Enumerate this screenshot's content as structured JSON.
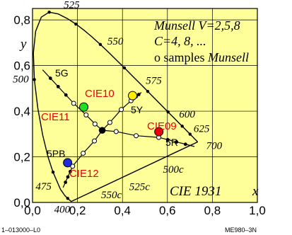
{
  "chart_data": {
    "type": "scatter",
    "title": "",
    "xlabel": "x",
    "ylabel": "y",
    "xlim": [
      0,
      1.0
    ],
    "ylim": [
      0,
      0.85
    ],
    "x_ticks": [
      "0,0",
      "0,2",
      "0,4",
      "0,6",
      "0,8",
      "1,0"
    ],
    "x_tick_values": [
      0,
      0.2,
      0.4,
      0.6,
      0.8,
      1.0
    ],
    "y_ticks": [
      "0,0",
      "0,2",
      "0,4",
      "0,6",
      "0,8"
    ],
    "y_tick_values": [
      0,
      0.2,
      0.4,
      0.6,
      0.8
    ],
    "grid": true,
    "background": "#ffff99",
    "spectral_locus": [
      [
        0.1741,
        0.005
      ],
      [
        0.1733,
        0.0048
      ],
      [
        0.1726,
        0.0048
      ],
      [
        0.1714,
        0.0051
      ],
      [
        0.1689,
        0.0069
      ],
      [
        0.1644,
        0.0109
      ],
      [
        0.1566,
        0.0177
      ],
      [
        0.144,
        0.0297
      ],
      [
        0.1241,
        0.0578
      ],
      [
        0.0913,
        0.1327
      ],
      [
        0.0687,
        0.2007
      ],
      [
        0.0454,
        0.295
      ],
      [
        0.0235,
        0.4127
      ],
      [
        0.0082,
        0.5384
      ],
      [
        0.0039,
        0.6548
      ],
      [
        0.0139,
        0.7502
      ],
      [
        0.0389,
        0.812
      ],
      [
        0.0743,
        0.8338
      ],
      [
        0.1142,
        0.8262
      ],
      [
        0.1547,
        0.8059
      ],
      [
        0.1929,
        0.7816
      ],
      [
        0.2296,
        0.7543
      ],
      [
        0.2658,
        0.7243
      ],
      [
        0.3016,
        0.6923
      ],
      [
        0.3373,
        0.6589
      ],
      [
        0.3731,
        0.6245
      ],
      [
        0.4087,
        0.5896
      ],
      [
        0.4441,
        0.5547
      ],
      [
        0.4788,
        0.5202
      ],
      [
        0.5125,
        0.4866
      ],
      [
        0.5448,
        0.4544
      ],
      [
        0.5752,
        0.4242
      ],
      [
        0.6029,
        0.3965
      ],
      [
        0.627,
        0.3725
      ],
      [
        0.6482,
        0.3514
      ],
      [
        0.6658,
        0.334
      ],
      [
        0.6801,
        0.3197
      ],
      [
        0.6915,
        0.3083
      ],
      [
        0.7006,
        0.2993
      ],
      [
        0.7079,
        0.292
      ],
      [
        0.714,
        0.2859
      ],
      [
        0.719,
        0.2809
      ],
      [
        0.723,
        0.277
      ],
      [
        0.726,
        0.274
      ],
      [
        0.7283,
        0.2717
      ],
      [
        0.73,
        0.27
      ],
      [
        0.7347,
        0.2653
      ]
    ],
    "wavelength_labels": [
      {
        "text": "400",
        "x": 0.1733,
        "y": 0.0048,
        "anchor": "end",
        "dx": -2,
        "dy": 16
      },
      {
        "text": "475",
        "x": 0.1096,
        "y": 0.0868,
        "anchor": "end",
        "dx": -8,
        "dy": 10
      },
      {
        "text": "500",
        "x": 0.0082,
        "y": 0.5384,
        "anchor": "end",
        "dx": -8,
        "dy": 4
      },
      {
        "text": "525",
        "x": 0.1136,
        "y": 0.8262,
        "anchor": "start",
        "dx": 8,
        "dy": -8
      },
      {
        "text": "550",
        "x": 0.3016,
        "y": 0.6923,
        "anchor": "start",
        "dx": 10,
        "dy": 0
      },
      {
        "text": "575",
        "x": 0.4788,
        "y": 0.5202,
        "anchor": "start",
        "dx": 8,
        "dy": 0
      },
      {
        "text": "600",
        "x": 0.627,
        "y": 0.3725,
        "anchor": "start",
        "dx": 8,
        "dy": 0
      },
      {
        "text": "625",
        "x": 0.6915,
        "y": 0.3083,
        "anchor": "start",
        "dx": 8,
        "dy": 0
      },
      {
        "text": "700",
        "x": 0.7347,
        "y": 0.2653,
        "anchor": "start",
        "dx": 12,
        "dy": 10
      },
      {
        "text": "500c",
        "x": 0.58,
        "y": 0.13,
        "anchor": "start",
        "dx": 0,
        "dy": 0
      },
      {
        "text": "525c",
        "x": 0.43,
        "y": 0.055,
        "anchor": "start",
        "dx": 0,
        "dy": 0
      },
      {
        "text": "550c",
        "x": 0.305,
        "y": 0.018,
        "anchor": "start",
        "dx": 0,
        "dy": 0
      }
    ],
    "white_point": [
      0.31,
      0.316
    ],
    "series": [
      {
        "name": "5G",
        "x": [
          0.31,
          0.2778,
          0.2383,
          0.1831
        ],
        "y": [
          0.316,
          0.3439,
          0.3834,
          0.4342
        ]
      },
      {
        "name": "5Y",
        "x": [
          0.31,
          0.3441,
          0.3948,
          0.4381
        ],
        "y": [
          0.316,
          0.3506,
          0.4072,
          0.4459
        ]
      },
      {
        "name": "5R",
        "x": [
          0.31,
          0.3719,
          0.4608,
          0.5614
        ],
        "y": [
          0.316,
          0.3107,
          0.2924,
          0.2851
        ]
      },
      {
        "name": "5PB",
        "x": [
          0.31,
          0.2753,
          0.2252,
          0.1784
        ],
        "y": [
          0.316,
          0.2694,
          0.2156,
          0.1585
        ]
      }
    ],
    "series_extensions": [
      {
        "from": [
          0.1831,
          0.4342
        ],
        "to": [
          0.045,
          0.581
        ]
      },
      {
        "from": [
          0.4381,
          0.4459
        ],
        "to": [
          0.484,
          0.482
        ]
      },
      {
        "from": [
          0.5614,
          0.2851
        ],
        "to": [
          0.72,
          0.245
        ]
      },
      {
        "from": [
          0.1784,
          0.1585
        ],
        "to": [
          0.136,
          0.065
        ]
      }
    ],
    "cie_samples": [
      {
        "label": "CIE09",
        "x": 0.562,
        "y": 0.31,
        "color": "#e8000b"
      },
      {
        "label": "CIE10",
        "x": 0.445,
        "y": 0.468,
        "color": "#ffee00"
      },
      {
        "label": "CIE11",
        "x": 0.228,
        "y": 0.418,
        "color": "#22dd22"
      },
      {
        "label": "CIE12",
        "x": 0.156,
        "y": 0.174,
        "color": "#1f2bd8"
      }
    ]
  },
  "info": {
    "line1": "Munsell V=2,5,8",
    "line2": "C=4, 8, ...",
    "line3_prefix": "o samples ",
    "line3_italic": "Munsell"
  },
  "labels": {
    "cie_system": "CIE 1931",
    "hue_5G": "5G",
    "hue_5Y": "5Y",
    "hue_5R": "5R",
    "hue_5PB": "5PB",
    "cie09": "CIE09",
    "cie10": "CIE10",
    "cie11": "CIE11",
    "cie12": "CIE12"
  },
  "footer": {
    "left": "1–013000–L0",
    "right": "ME980–3N"
  }
}
